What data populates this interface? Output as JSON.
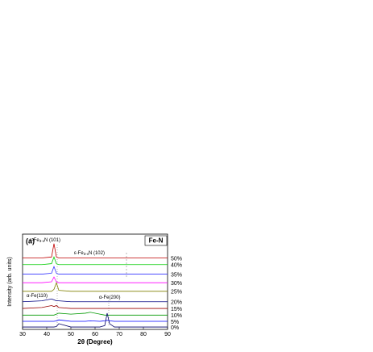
{
  "chart_data": {
    "type": "line",
    "panel_label": "(a)",
    "box_label": "Fe-N",
    "xlabel": "2θ (Degree)",
    "ylabel": "Intensity (arb. units)",
    "xlim": [
      30,
      90
    ],
    "xticks": [
      30,
      40,
      50,
      60,
      70,
      80,
      90
    ],
    "ylim": [
      0,
      100
    ],
    "annotations": [
      {
        "text": "ε-Fe",
        "sub": "3-x",
        "after": "N (101)"
      },
      {
        "text": "ε-Fe",
        "sub": "3-x",
        "after": "N (102)"
      },
      {
        "text": "α-Fe(110)"
      },
      {
        "text": "α-Fe(200)"
      }
    ],
    "x": [
      30,
      38,
      42,
      43,
      44,
      45,
      50,
      56,
      58,
      62,
      64,
      65,
      66,
      68,
      80,
      90
    ],
    "series": [
      {
        "name": "50%",
        "color": "#c00000",
        "values": [
          75,
          75,
          76,
          90,
          76,
          75,
          75,
          75,
          75,
          75,
          75,
          75,
          75,
          75,
          75,
          75
        ]
      },
      {
        "name": "40%",
        "color": "#00cc00",
        "values": [
          68,
          68,
          69,
          76,
          69,
          68,
          68,
          68,
          68,
          68,
          68,
          68,
          68,
          68,
          68,
          68
        ]
      },
      {
        "name": "35%",
        "color": "#3333ff",
        "values": [
          58,
          58,
          59,
          66,
          59,
          58,
          58,
          58,
          58,
          58,
          58,
          58,
          58,
          58,
          58,
          58
        ]
      },
      {
        "name": "30%",
        "color": "#ff00ff",
        "values": [
          49,
          49,
          50,
          55,
          50,
          49,
          49,
          49,
          49,
          49,
          49,
          49,
          49,
          49,
          49,
          49
        ]
      },
      {
        "name": "25%",
        "color": "#808000",
        "values": [
          40,
          40,
          40,
          42,
          49,
          41,
          40,
          40,
          40,
          40,
          40,
          40,
          40,
          40,
          40,
          40
        ]
      },
      {
        "name": "20%",
        "color": "#000080",
        "values": [
          29,
          30,
          32,
          31,
          30,
          30,
          29,
          29,
          29,
          29,
          29,
          29,
          29,
          29,
          29,
          29
        ]
      },
      {
        "name": "15%",
        "color": "#990000",
        "values": [
          22,
          23,
          25,
          24,
          25,
          23,
          22,
          22,
          22,
          22,
          22,
          22,
          22,
          22,
          22,
          22
        ]
      },
      {
        "name": "10%",
        "color": "#009900",
        "values": [
          15,
          15,
          15,
          15,
          16,
          17,
          16,
          17,
          18,
          16,
          15,
          15,
          15,
          15,
          15,
          15
        ]
      },
      {
        "name": "5%",
        "color": "#0000ff",
        "values": [
          8.5,
          8.5,
          8.5,
          8.5,
          9,
          10,
          8.5,
          8.5,
          9,
          8.5,
          9,
          9.5,
          9,
          8.5,
          8.5,
          8.5
        ]
      },
      {
        "name": "0%",
        "color": "#000066",
        "values": [
          2.5,
          2.5,
          2.5,
          2.5,
          3,
          6,
          2.5,
          2.5,
          2.5,
          2.5,
          4,
          17,
          6,
          2.5,
          2.5,
          2.5
        ]
      }
    ]
  }
}
